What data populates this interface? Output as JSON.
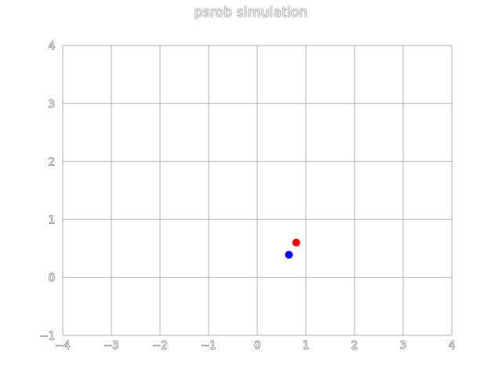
{
  "chart_data": {
    "type": "scatter",
    "title": "psrob simulation",
    "xlabel": "",
    "ylabel": "",
    "xlim": [
      -4,
      4
    ],
    "ylim": [
      -1,
      4
    ],
    "xticks": [
      "−4",
      "−3",
      "−2",
      "−1",
      "0",
      "1",
      "2",
      "3",
      "4"
    ],
    "yticks": [
      "−1",
      "0",
      "1",
      "2",
      "3",
      "4"
    ],
    "grid": true,
    "series": [
      {
        "color": "#ff0000",
        "points": [
          [
            0.8,
            0.6
          ]
        ]
      },
      {
        "color": "#0000ff",
        "points": [
          [
            0.65,
            0.39
          ]
        ]
      }
    ]
  }
}
